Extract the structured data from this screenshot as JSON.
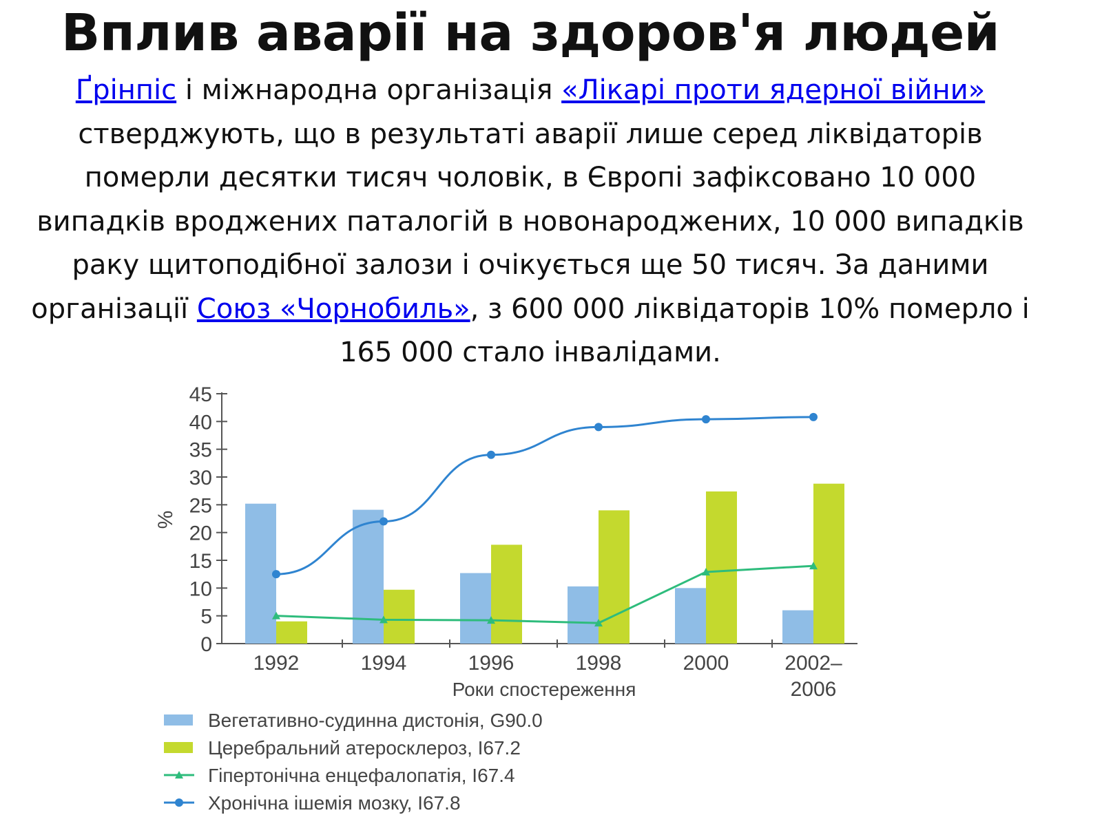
{
  "slide": {
    "title": "Вплив аварії на здоров'я людей",
    "body": {
      "link1": "Ґрінпіс",
      "text1": " і міжнародна організація ",
      "link2": "«Лікарі проти ядерної війни»",
      "text2": " стверджують, що в результаті аварії лише серед ліквідаторів померли десятки тисяч чоловік, в Європі зафіксовано 10 000 випадків вроджених паталогій в новонароджених, 10 000 випадків раку щитоподібної залози і очікується ще 50 тисяч. За даними організації ",
      "link3": "Союз «Чорнобиль»",
      "text3": ", з 600 000 ліквідаторів 10% померло і 165 000 стало інвалідами."
    }
  },
  "chart_data": {
    "type": "bar",
    "title": "",
    "xlabel": "Роки спостереження",
    "ylabel": "%",
    "ylim": [
      0,
      45
    ],
    "yticks": [
      0,
      5,
      10,
      15,
      20,
      25,
      30,
      35,
      40,
      45
    ],
    "categories": [
      "1992",
      "1994",
      "1996",
      "1998",
      "2000",
      "2002–\n2006"
    ],
    "legend_position": "bottom",
    "series": [
      {
        "name": "Вегетативно-судинна дистонія, G90.0",
        "kind": "bar",
        "color": "#8fbde6",
        "values": [
          25.2,
          24.1,
          12.7,
          10.3,
          10.0,
          6.0
        ]
      },
      {
        "name": "Церебральний атеросклероз, I67.2",
        "kind": "bar",
        "color": "#c4d92e",
        "values": [
          4.0,
          9.7,
          17.8,
          24.0,
          27.4,
          28.8
        ]
      },
      {
        "name": "Гіпертонічна енцефалопатія, I67.4",
        "kind": "line",
        "marker": "triangle",
        "color": "#2ebc7c",
        "values": [
          5.0,
          4.3,
          4.2,
          3.7,
          12.9,
          14.0
        ]
      },
      {
        "name": "Хронічна ішемія мозку, I67.8",
        "kind": "line",
        "marker": "circle",
        "color": "#2f84d0",
        "values": [
          12.5,
          22.0,
          34.0,
          39.0,
          40.4,
          40.8
        ]
      }
    ]
  }
}
